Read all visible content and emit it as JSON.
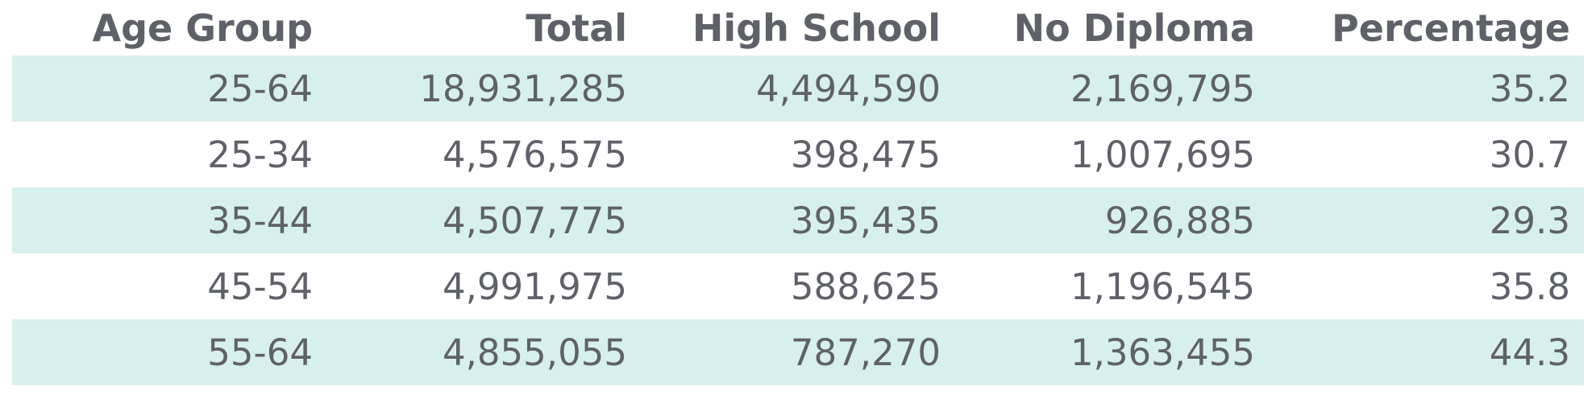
{
  "table": {
    "headers": [
      "Age Group",
      "Total",
      "High School",
      "No Diploma",
      "Percentage"
    ],
    "rows": [
      [
        "25-64",
        "18,931,285",
        "4,494,590",
        "2,169,795",
        "35.2"
      ],
      [
        "25-34",
        "4,576,575",
        "398,475",
        "1,007,695",
        "30.7"
      ],
      [
        "35-44",
        "4,507,775",
        "395,435",
        "926,885",
        "29.3"
      ],
      [
        "45-54",
        "4,991,975",
        "588,625",
        "1,196,545",
        "35.8"
      ],
      [
        "55-64",
        "4,855,055",
        "787,270",
        "1,363,455",
        "44.3"
      ]
    ]
  }
}
